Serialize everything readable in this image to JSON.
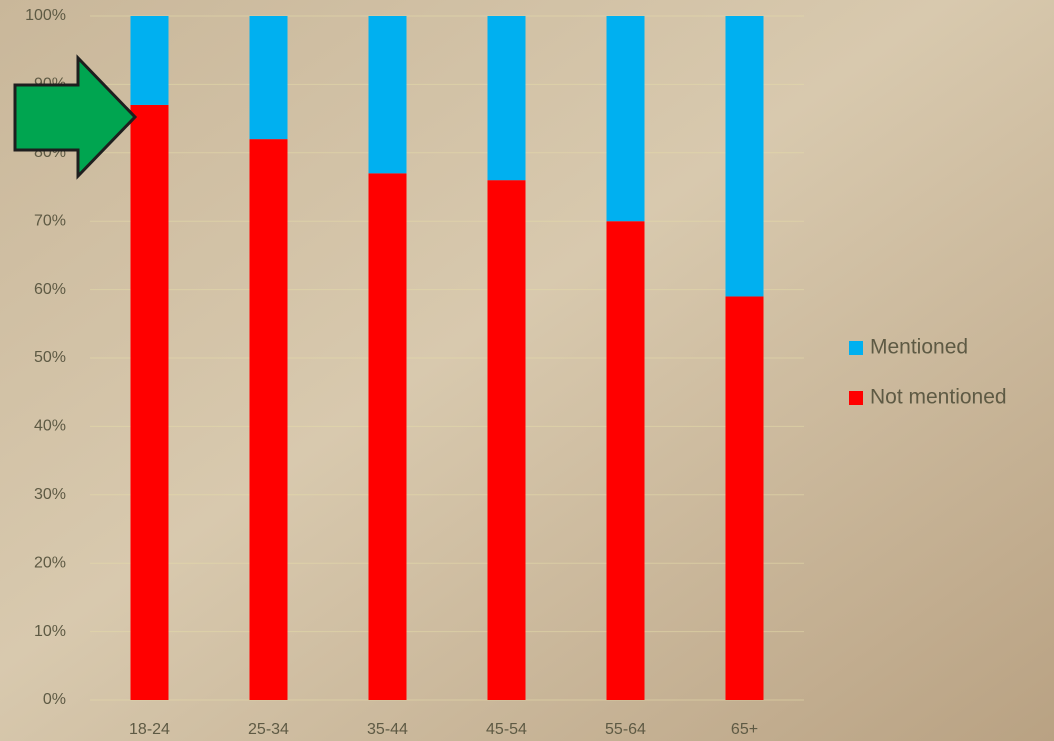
{
  "chart_data": {
    "type": "stacked_bar",
    "categories": [
      "18-24",
      "25-34",
      "35-44",
      "45-54",
      "55-64",
      "65+"
    ],
    "series": [
      {
        "name": "Not mentioned",
        "color": "#ff0000",
        "values": [
          87,
          82,
          77,
          76,
          70,
          59
        ]
      },
      {
        "name": "Mentioned",
        "color": "#00b0f0",
        "values": [
          13,
          18,
          23,
          24,
          30,
          41
        ]
      }
    ],
    "ylim": [
      0,
      100
    ],
    "yticks": [
      {
        "value": 0,
        "label": "0%"
      },
      {
        "value": 10,
        "label": "10%"
      },
      {
        "value": 20,
        "label": "20%"
      },
      {
        "value": 30,
        "label": "30%"
      },
      {
        "value": 40,
        "label": "40%"
      },
      {
        "value": 50,
        "label": "50%"
      },
      {
        "value": 60,
        "label": "60%"
      },
      {
        "value": 70,
        "label": "70%"
      },
      {
        "value": 80,
        "label": "80%"
      },
      {
        "value": 90,
        "label": "90%"
      },
      {
        "value": 100,
        "label": "100%"
      }
    ],
    "grid": true,
    "legend": "right"
  }
}
